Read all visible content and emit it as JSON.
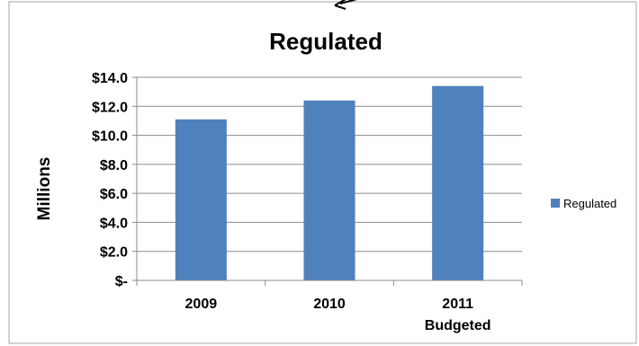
{
  "chart_data": {
    "type": "bar",
    "title": "Regulated",
    "ylabel": "Millions",
    "xlabel": "",
    "categories": [
      {
        "lines": [
          "2009"
        ]
      },
      {
        "lines": [
          "2010"
        ]
      },
      {
        "lines": [
          "2011",
          "Budgeted"
        ]
      }
    ],
    "series": [
      {
        "name": "Regulated",
        "color": "#4f81bd",
        "values": [
          11.1,
          12.4,
          13.4
        ]
      }
    ],
    "ylim": [
      0,
      14
    ],
    "yticks": [
      0,
      2,
      4,
      6,
      8,
      10,
      12,
      14
    ],
    "ytick_labels": [
      "$-",
      "$2.0",
      "$4.0",
      "$6.0",
      "$8.0",
      "$10.0",
      "$12.0",
      "$14.0"
    ],
    "grid": true,
    "legend_position": "right"
  }
}
